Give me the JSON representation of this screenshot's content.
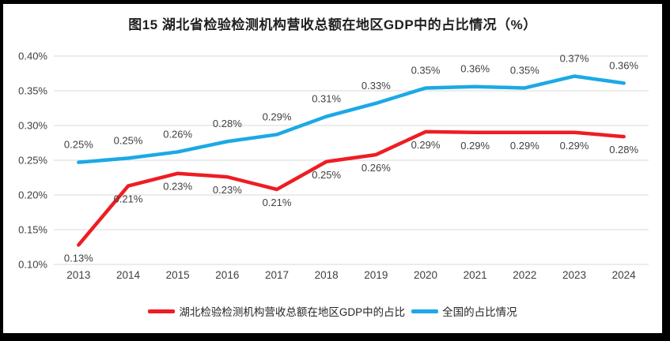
{
  "title": "图15  湖北省检验检测机构营收总额在地区GDP中的占比情况（%）",
  "chart_data": {
    "type": "line",
    "categories": [
      "2013",
      "2014",
      "2015",
      "2016",
      "2017",
      "2018",
      "2019",
      "2020",
      "2021",
      "2022",
      "2023",
      "2024"
    ],
    "y_axis": {
      "ticks": [
        "0.40%",
        "0.35%",
        "0.30%",
        "0.25%",
        "0.20%",
        "0.15%",
        "0.10%"
      ],
      "min_percent": 0.1,
      "max_percent": 0.4
    },
    "grid": true,
    "legend_position": "bottom",
    "colors": {
      "hubei_red": "#EE1D23",
      "national_blue": "#1CA9E5",
      "gridline_gray": "#D9D9D9",
      "label_text": "#404040"
    },
    "series": [
      {
        "name": "湖北检验检测机构营收总额在地区GDP中的占比",
        "color": "#EE1D23",
        "label_position": "below",
        "values_percent": [
          0.128,
          0.213,
          0.231,
          0.226,
          0.208,
          0.248,
          0.258,
          0.291,
          0.29,
          0.29,
          0.29,
          0.284
        ],
        "labels": [
          "0.13%",
          "0.21%",
          "0.23%",
          "0.23%",
          "0.21%",
          "0.25%",
          "0.26%",
          "0.29%",
          "0.29%",
          "0.29%",
          "0.29%",
          "0.28%"
        ]
      },
      {
        "name": "全国的占比情况",
        "color": "#1CA9E5",
        "label_position": "above",
        "values_percent": [
          0.247,
          0.253,
          0.262,
          0.277,
          0.287,
          0.313,
          0.332,
          0.354,
          0.356,
          0.354,
          0.371,
          0.361
        ],
        "labels": [
          "0.25%",
          "0.25%",
          "0.26%",
          "0.28%",
          "0.29%",
          "0.31%",
          "0.33%",
          "0.35%",
          "0.36%",
          "0.35%",
          "0.37%",
          "0.36%"
        ]
      }
    ]
  }
}
